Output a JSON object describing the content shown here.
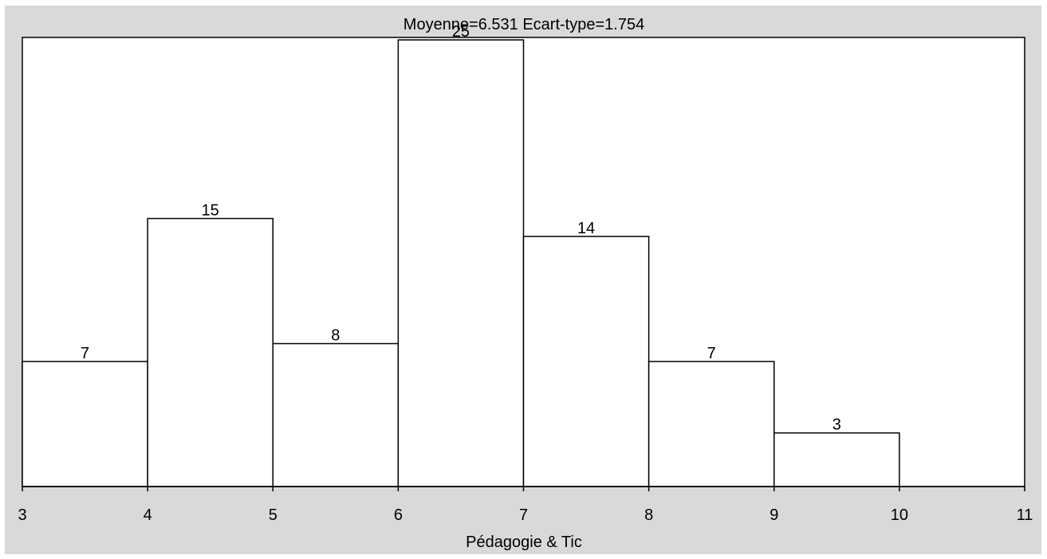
{
  "chart_data": {
    "type": "histogram",
    "title": "Moyenne=6.531  Ecart-type=1.754",
    "xlabel": "Pédagogie & Tic",
    "ylabel": "",
    "xlim": [
      3,
      11
    ],
    "ylim": [
      0,
      25
    ],
    "x_ticks": [
      "3",
      "4",
      "5",
      "6",
      "7",
      "8",
      "9",
      "10",
      "11"
    ],
    "bins": [
      {
        "from": 3,
        "to": 4,
        "count": 7,
        "label": "7"
      },
      {
        "from": 4,
        "to": 5,
        "count": 15,
        "label": "15"
      },
      {
        "from": 5,
        "to": 6,
        "count": 8,
        "label": "8"
      },
      {
        "from": 6,
        "to": 7,
        "count": 25,
        "label": "25"
      },
      {
        "from": 7,
        "to": 8,
        "count": 14,
        "label": "14"
      },
      {
        "from": 8,
        "to": 9,
        "count": 7,
        "label": "7"
      },
      {
        "from": 9,
        "to": 10,
        "count": 3,
        "label": "3"
      },
      {
        "from": 10,
        "to": 11,
        "count": 0,
        "label": ""
      }
    ],
    "colors": {
      "background": "#d9d9d9",
      "plot_area": "#ffffff",
      "bar_stroke": "#000000"
    }
  }
}
